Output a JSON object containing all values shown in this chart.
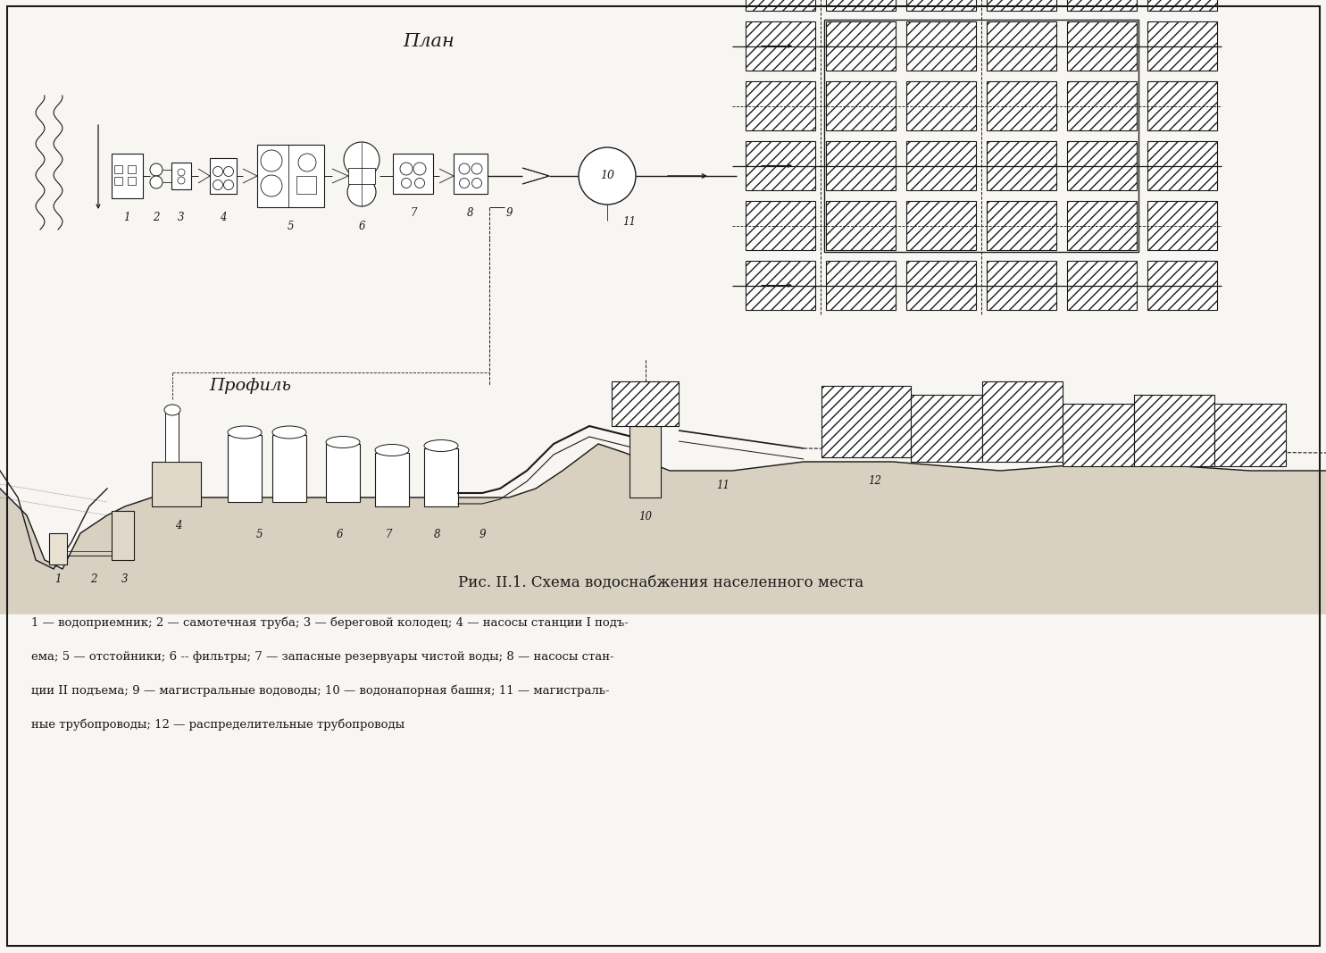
{
  "title_plan": "План",
  "title_profile": "Профиль",
  "figure_caption": "Рис. II.1. Схема водоснабжения населенного места",
  "bg_color": "#f8f6f2",
  "line_color": "#1a1a1a",
  "fig_width": 14.85,
  "fig_height": 10.67,
  "legend_lines": [
    "1 — водоприемник; 2 — самотечная труба; 3 — береговой колодец; 4 — насосы станции I подъ-",
    "ема; 5 — отстойники; 6 -- фильтры; 7 — запасные резервуары чистой воды; 8 — насосы стан-",
    "ции II подъема; 9 — магистральные водоводы; 10 — водонапорная башня; 11 — магистраль-",
    "ные трубопроводы; 12 — распределительные трубопроводы"
  ]
}
